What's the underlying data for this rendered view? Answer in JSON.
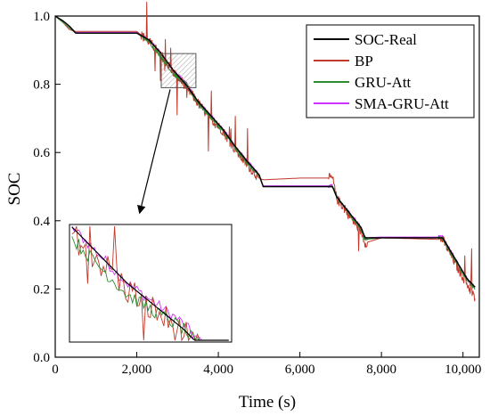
{
  "chart_data": {
    "type": "line",
    "title": "",
    "xlabel": "Time (s)",
    "ylabel": "SOC",
    "xlim": [
      0,
      10400
    ],
    "ylim": [
      0.0,
      1.0
    ],
    "xticks": [
      0,
      2000,
      4000,
      6000,
      8000,
      10000
    ],
    "xtick_labels": [
      "0",
      "2,000",
      "4,000",
      "6,000",
      "8,000",
      "10,000"
    ],
    "yticks": [
      0.0,
      0.2,
      0.4,
      0.6,
      0.8,
      1.0
    ],
    "ytick_labels": [
      "0.0",
      "0.2",
      "0.4",
      "0.6",
      "0.8",
      "1.0"
    ],
    "grid": false,
    "legend_position": "top-right",
    "colors": {
      "SOC-Real": "#000000",
      "BP": "#c0392b",
      "GRU-Att": "#2e8b2e",
      "SMA-GRU-Att": "#cc33ff"
    },
    "series": [
      {
        "name": "SOC-Real",
        "x": [
          0,
          200,
          350,
          500,
          2000,
          2300,
          2600,
          2900,
          3200,
          3500,
          3800,
          4100,
          4400,
          4700,
          5000,
          5100,
          6000,
          6800,
          6900,
          7100,
          7300,
          7500,
          7600,
          8000,
          9500,
          9700,
          9900,
          10100,
          10300
        ],
        "y": [
          1.0,
          0.985,
          0.97,
          0.95,
          0.95,
          0.93,
          0.89,
          0.84,
          0.8,
          0.75,
          0.71,
          0.67,
          0.62,
          0.575,
          0.535,
          0.5,
          0.5,
          0.5,
          0.47,
          0.44,
          0.41,
          0.38,
          0.35,
          0.35,
          0.35,
          0.31,
          0.27,
          0.23,
          0.205
        ]
      },
      {
        "name": "BP",
        "x": [
          0,
          200,
          350,
          500,
          2000,
          2300,
          2600,
          2900,
          3200,
          3500,
          3800,
          4100,
          4400,
          4700,
          5000,
          5100,
          6000,
          6800,
          6900,
          7100,
          7300,
          7500,
          7600,
          8000,
          9500,
          9700,
          9900,
          10100,
          10300
        ],
        "y": [
          1.0,
          0.98,
          0.96,
          0.955,
          0.955,
          0.925,
          0.885,
          0.835,
          0.795,
          0.745,
          0.7,
          0.665,
          0.61,
          0.565,
          0.525,
          0.52,
          0.525,
          0.525,
          0.465,
          0.435,
          0.4,
          0.37,
          0.335,
          0.35,
          0.345,
          0.3,
          0.255,
          0.215,
          0.17
        ]
      },
      {
        "name": "GRU-Att",
        "x": [
          0,
          200,
          350,
          500,
          2000,
          2300,
          2600,
          2900,
          3200,
          3500,
          3800,
          4100,
          4400,
          4700,
          5000,
          5100,
          6000,
          6800,
          6900,
          7100,
          7300,
          7500,
          7600,
          8000,
          9500,
          9700,
          9900,
          10100,
          10300
        ],
        "y": [
          1.0,
          0.98,
          0.965,
          0.95,
          0.95,
          0.925,
          0.88,
          0.83,
          0.8,
          0.745,
          0.705,
          0.665,
          0.615,
          0.57,
          0.53,
          0.5,
          0.5,
          0.5,
          0.47,
          0.44,
          0.405,
          0.375,
          0.345,
          0.35,
          0.35,
          0.305,
          0.265,
          0.225,
          0.2
        ]
      },
      {
        "name": "SMA-GRU-Att",
        "x": [
          0,
          200,
          350,
          500,
          2000,
          2300,
          2600,
          2900,
          3200,
          3500,
          3800,
          4100,
          4400,
          4700,
          5000,
          5100,
          6000,
          6800,
          6900,
          7100,
          7300,
          7500,
          7600,
          8000,
          9500,
          9700,
          9900,
          10100,
          10300
        ],
        "y": [
          1.0,
          0.985,
          0.97,
          0.952,
          0.952,
          0.93,
          0.89,
          0.84,
          0.805,
          0.75,
          0.71,
          0.67,
          0.62,
          0.575,
          0.535,
          0.502,
          0.502,
          0.502,
          0.472,
          0.442,
          0.41,
          0.38,
          0.35,
          0.352,
          0.352,
          0.31,
          0.27,
          0.23,
          0.205
        ]
      }
    ],
    "annotations": {
      "zoom_region": {
        "x": [
          2600,
          3450
        ],
        "y": [
          0.79,
          0.89
        ]
      }
    }
  }
}
